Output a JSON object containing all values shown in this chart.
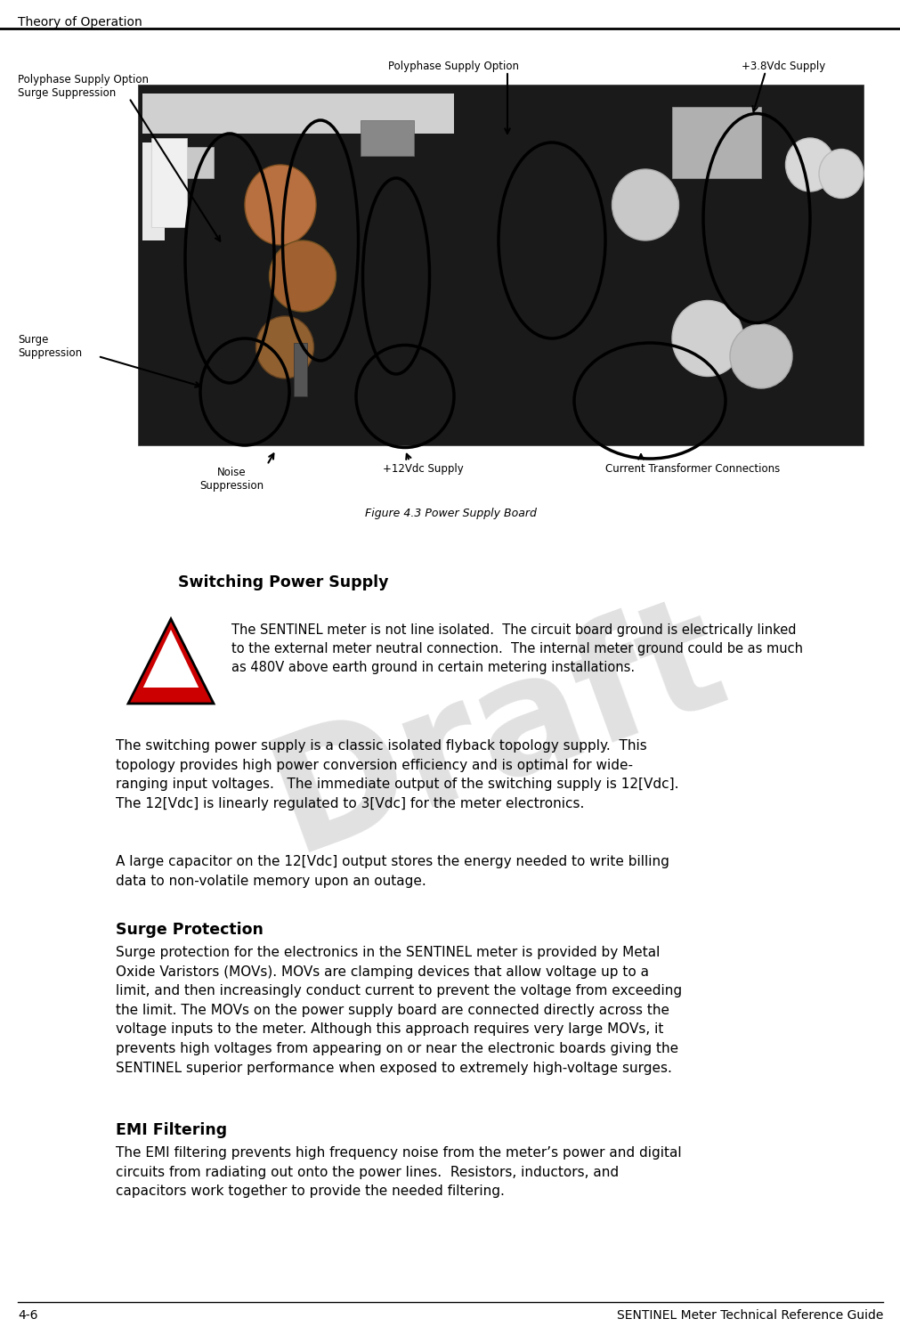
{
  "header_text": "Theory of Operation",
  "footer_left": "4-6",
  "footer_right": "SENTINEL Meter Technical Reference Guide",
  "figure_caption": "Figure 4.3 Power Supply Board",
  "section1_title": "Switching Power Supply",
  "warning_text": "The SENTINEL meter is not line isolated.  The circuit board ground is electrically linked\nto the external meter neutral connection.  The internal meter ground could be as much\nas 480V above earth ground in certain metering installations.",
  "section1_body1": "The switching power supply is a classic isolated flyback topology supply.  This\ntopology provides high power conversion efficiency and is optimal for wide-\nranging input voltages.   The immediate output of the switching supply is 12[Vdc].\nThe 12[Vdc] is linearly regulated to 3[Vdc] for the meter electronics.",
  "section1_body2": "A large capacitor on the 12[Vdc] output stores the energy needed to write billing\ndata to non-volatile memory upon an outage.",
  "section2_title": "Surge Protection",
  "section2_body": "Surge protection for the electronics in the SENTINEL meter is provided by Metal\nOxide Varistors (MOVs). MOVs are clamping devices that allow voltage up to a\nlimit, and then increasingly conduct current to prevent the voltage from exceeding\nthe limit. The MOVs on the power supply board are connected directly across the\nvoltage inputs to the meter. Although this approach requires very large MOVs, it\nprevents high voltages from appearing on or near the electronic boards giving the\nSENTINEL superior performance when exposed to extremely high-voltage surges.",
  "section3_title": "EMI Filtering",
  "section3_body": "The EMI filtering prevents high frequency noise from the meter’s power and digital\ncircuits from radiating out onto the power lines.  Resistors, inductors, and\ncapacitors work together to provide the needed filtering.",
  "draft_text": "Draft",
  "background_color": "#ffffff",
  "body_font_size": 11.0,
  "section_title_font_size": 12.5,
  "label_font_size": 8.5,
  "header_font_size": 10.0,
  "footer_font_size": 10.0,
  "caption_font_size": 9.0,
  "warning_font_size": 10.5
}
